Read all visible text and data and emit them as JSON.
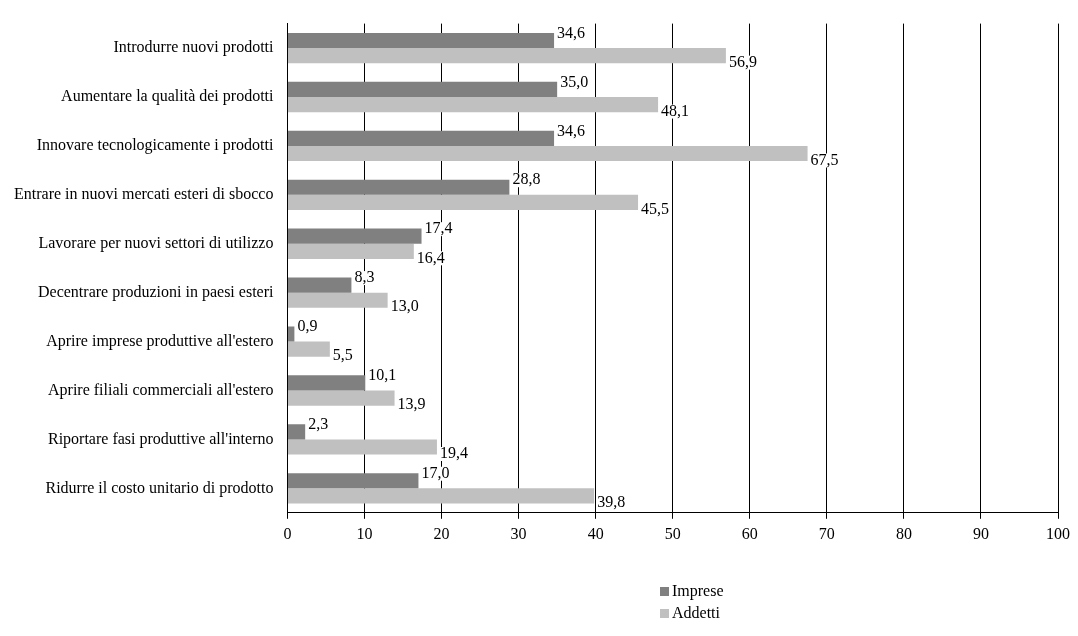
{
  "chart_data": {
    "type": "bar",
    "orientation": "horizontal",
    "categories": [
      "Introdurre nuovi prodotti",
      "Aumentare la qualità dei prodotti",
      "Innovare tecnologicamente i prodotti",
      "Entrare in nuovi mercati esteri di sbocco",
      "Lavorare per nuovi settori di utilizzo",
      "Decentrare produzioni in paesi esteri",
      "Aprire imprese produttive all'estero",
      "Aprire filiali commerciali all'estero",
      "Riportare fasi produttive all'interno",
      "Ridurre il costo unitario di prodotto"
    ],
    "series": [
      {
        "name": "Imprese",
        "color": "#808080",
        "values": [
          34.6,
          35.0,
          34.6,
          28.8,
          17.4,
          8.3,
          0.9,
          10.1,
          2.3,
          17.0
        ],
        "value_labels": [
          "34,6",
          "35,0",
          "34,6",
          "28,8",
          "17,4",
          "8,3",
          "0,9",
          "10,1",
          "2,3",
          "17,0"
        ]
      },
      {
        "name": "Addetti",
        "color": "#c0c0c0",
        "values": [
          56.9,
          48.1,
          67.5,
          45.5,
          16.4,
          13.0,
          5.5,
          13.9,
          19.4,
          39.8
        ],
        "value_labels": [
          "56,9",
          "48,1",
          "67,5",
          "45,5",
          "16,4",
          "13,0",
          "5,5",
          "13,9",
          "19,4",
          "39,8"
        ]
      }
    ],
    "xlim": [
      0,
      100
    ],
    "xticks": [
      0,
      10,
      20,
      30,
      40,
      50,
      60,
      70,
      80,
      90,
      100
    ],
    "grid": "x",
    "legend": "bottom"
  }
}
